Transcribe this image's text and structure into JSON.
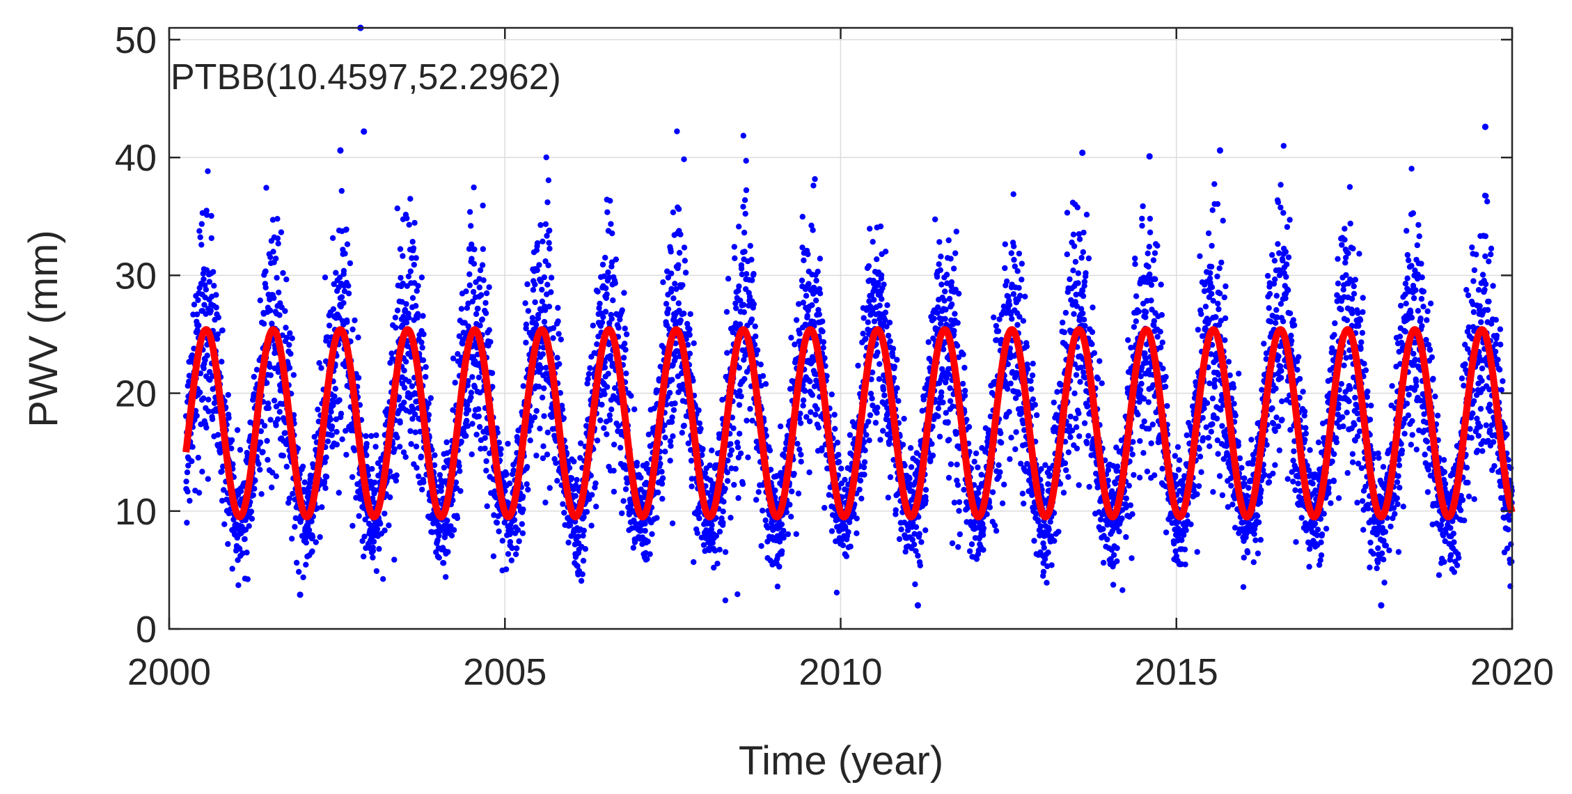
{
  "chart_data": {
    "type": "scatter",
    "title": "",
    "annotation": "PTBB(10.4597,52.2962)",
    "xlabel": "Time (year)",
    "ylabel": "PWV (mm)",
    "xlim": [
      2000,
      2020
    ],
    "ylim": [
      0,
      51
    ],
    "xticks": [
      2000,
      2005,
      2010,
      2015,
      2020
    ],
    "yticks": [
      0,
      10,
      20,
      30,
      40,
      50
    ],
    "grid": true,
    "colors": {
      "points": "#0000ff",
      "fit": "#ff0000"
    },
    "series": [
      {
        "style": "points",
        "x_range": [
          2000.25,
          2020.0
        ],
        "approx_daily_points": true,
        "seasonal_mean_min": 9.5,
        "seasonal_mean_max": 25.0,
        "scatter_range": [
          2.0,
          51.0
        ]
      },
      {
        "style": "line",
        "model": "annual sinusoid",
        "x_range": [
          2000.25,
          2020.0
        ],
        "min": 9.5,
        "max": 25.4,
        "peak_phase_year_fraction": 0.55
      }
    ],
    "outliers": [
      {
        "x": 2002.85,
        "y": 51.0
      },
      {
        "x": 2002.9,
        "y": 42.2
      },
      {
        "x": 2002.55,
        "y": 40.6
      },
      {
        "x": 2013.6,
        "y": 40.4
      },
      {
        "x": 2014.6,
        "y": 40.1
      },
      {
        "x": 2015.65,
        "y": 40.6
      },
      {
        "x": 2019.6,
        "y": 42.6
      },
      {
        "x": 2001.95,
        "y": 2.9
      },
      {
        "x": 2011.15,
        "y": 2.0
      },
      {
        "x": 2018.05,
        "y": 2.0
      }
    ]
  }
}
